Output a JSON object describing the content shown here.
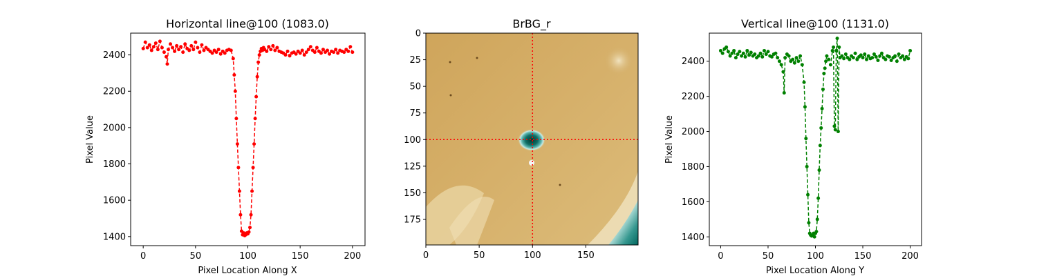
{
  "chart_data": [
    {
      "type": "line",
      "title": "Horizontal line@100 (1083.0)",
      "xlabel": "Pixel Location Along X",
      "ylabel": "Pixel Value",
      "xlim": [
        -12,
        212
      ],
      "ylim": [
        1350,
        2520
      ],
      "xticks": [
        0,
        50,
        100,
        150,
        200
      ],
      "yticks": [
        1400,
        1600,
        1800,
        2000,
        2200,
        2400
      ],
      "color": "#ff0000",
      "linestyle": "dashed",
      "marker": "circle",
      "series": [
        {
          "x": [
            0,
            2,
            4,
            6,
            8,
            10,
            12,
            14,
            16,
            18,
            20,
            22,
            23,
            24,
            26,
            28,
            30,
            32,
            34,
            36,
            38,
            40,
            42,
            44,
            46,
            48,
            50,
            52,
            54,
            56,
            58,
            60,
            62,
            64,
            66,
            68,
            70,
            72,
            74,
            76,
            78,
            80,
            82,
            84,
            86,
            87,
            88,
            89,
            90,
            91,
            92,
            93,
            94,
            95,
            96,
            97,
            98,
            99,
            100,
            101,
            102,
            103,
            104,
            105,
            106,
            107,
            108,
            109,
            110,
            111,
            112,
            113,
            114,
            115,
            116,
            118,
            120,
            122,
            124,
            126,
            128,
            130,
            132,
            134,
            136,
            138,
            140,
            142,
            144,
            146,
            148,
            150,
            152,
            154,
            156,
            158,
            160,
            162,
            164,
            166,
            168,
            170,
            172,
            174,
            176,
            178,
            180,
            182,
            184,
            186,
            188,
            190,
            192,
            194,
            196,
            198,
            200
          ],
          "y": [
            2435,
            2470,
            2440,
            2455,
            2425,
            2445,
            2465,
            2430,
            2475,
            2440,
            2415,
            2390,
            2350,
            2430,
            2460,
            2440,
            2420,
            2450,
            2430,
            2445,
            2415,
            2460,
            2435,
            2425,
            2450,
            2430,
            2470,
            2440,
            2415,
            2455,
            2425,
            2440,
            2430,
            2420,
            2410,
            2425,
            2415,
            2430,
            2405,
            2420,
            2410,
            2425,
            2430,
            2425,
            2380,
            2290,
            2200,
            2050,
            1910,
            1780,
            1650,
            1520,
            1430,
            1410,
            1420,
            1405,
            1410,
            1420,
            1415,
            1425,
            1450,
            1520,
            1650,
            1780,
            1910,
            2050,
            2170,
            2280,
            2360,
            2400,
            2420,
            2435,
            2425,
            2440,
            2430,
            2420,
            2445,
            2430,
            2450,
            2425,
            2440,
            2420,
            2415,
            2410,
            2400,
            2420,
            2395,
            2410,
            2415,
            2405,
            2420,
            2410,
            2425,
            2400,
            2415,
            2430,
            2445,
            2425,
            2415,
            2440,
            2420,
            2410,
            2430,
            2415,
            2425,
            2405,
            2420,
            2415,
            2430,
            2410,
            2425,
            2420,
            2415,
            2430,
            2420,
            2445,
            2415
          ]
        }
      ]
    },
    {
      "type": "heatmap",
      "title": "BrBG_r",
      "colormap": "BrBG_r",
      "xlim": [
        0,
        199
      ],
      "ylim": [
        199,
        0
      ],
      "xticks": [
        0,
        50,
        100,
        150
      ],
      "yticks": [
        0,
        25,
        50,
        75,
        100,
        125,
        150,
        175
      ],
      "crosshair": {
        "x": 100,
        "y": 100,
        "color": "#ff0000",
        "linestyle": "dotted"
      }
    },
    {
      "type": "line",
      "title": "Vertical line@100 (1131.0)",
      "xlabel": "Pixel Location Along Y",
      "ylabel": "Pixel Value",
      "xlim": [
        -12,
        212
      ],
      "ylim": [
        1350,
        2560
      ],
      "xticks": [
        0,
        50,
        100,
        150,
        200
      ],
      "yticks": [
        1400,
        1600,
        1800,
        2000,
        2200,
        2400
      ],
      "color": "#008000",
      "linestyle": "dashed",
      "marker": "circle",
      "series": [
        {
          "x": [
            0,
            2,
            4,
            6,
            8,
            10,
            12,
            14,
            16,
            18,
            20,
            22,
            24,
            26,
            28,
            30,
            32,
            34,
            36,
            38,
            40,
            42,
            44,
            46,
            48,
            50,
            52,
            54,
            56,
            58,
            60,
            62,
            64,
            66,
            67,
            68,
            70,
            72,
            74,
            76,
            78,
            80,
            82,
            84,
            86,
            88,
            89,
            90,
            91,
            92,
            93,
            94,
            95,
            96,
            97,
            98,
            99,
            100,
            101,
            102,
            103,
            104,
            105,
            106,
            107,
            108,
            109,
            110,
            111,
            112,
            114,
            116,
            118,
            119,
            120,
            121,
            122,
            123,
            124,
            125,
            126,
            128,
            130,
            132,
            134,
            136,
            138,
            140,
            142,
            144,
            146,
            148,
            150,
            152,
            154,
            156,
            158,
            160,
            162,
            164,
            166,
            168,
            170,
            172,
            174,
            176,
            178,
            180,
            182,
            184,
            186,
            188,
            190,
            192,
            194,
            196,
            198,
            200
          ],
          "y": [
            2460,
            2445,
            2470,
            2480,
            2455,
            2430,
            2445,
            2460,
            2420,
            2440,
            2455,
            2430,
            2445,
            2425,
            2460,
            2435,
            2450,
            2430,
            2440,
            2420,
            2430,
            2445,
            2425,
            2460,
            2440,
            2455,
            2430,
            2425,
            2440,
            2445,
            2420,
            2400,
            2380,
            2340,
            2220,
            2420,
            2440,
            2430,
            2400,
            2410,
            2390,
            2420,
            2400,
            2430,
            2380,
            2280,
            2140,
            1960,
            1800,
            1640,
            1480,
            1420,
            1410,
            1405,
            1410,
            1420,
            1400,
            1420,
            1430,
            1500,
            1620,
            1780,
            1920,
            2020,
            2130,
            2240,
            2330,
            2360,
            2400,
            2430,
            2410,
            2380,
            2460,
            2480,
            2030,
            2010,
            2460,
            2530,
            2000,
            2480,
            2420,
            2430,
            2415,
            2440,
            2420,
            2410,
            2430,
            2420,
            2445,
            2410,
            2425,
            2435,
            2420,
            2440,
            2410,
            2430,
            2415,
            2420,
            2440,
            2425,
            2405,
            2430,
            2445,
            2420,
            2410,
            2430,
            2425,
            2405,
            2420,
            2430,
            2400,
            2440,
            2420,
            2430,
            2410,
            2425,
            2415,
            2460
          ]
        }
      ]
    }
  ]
}
